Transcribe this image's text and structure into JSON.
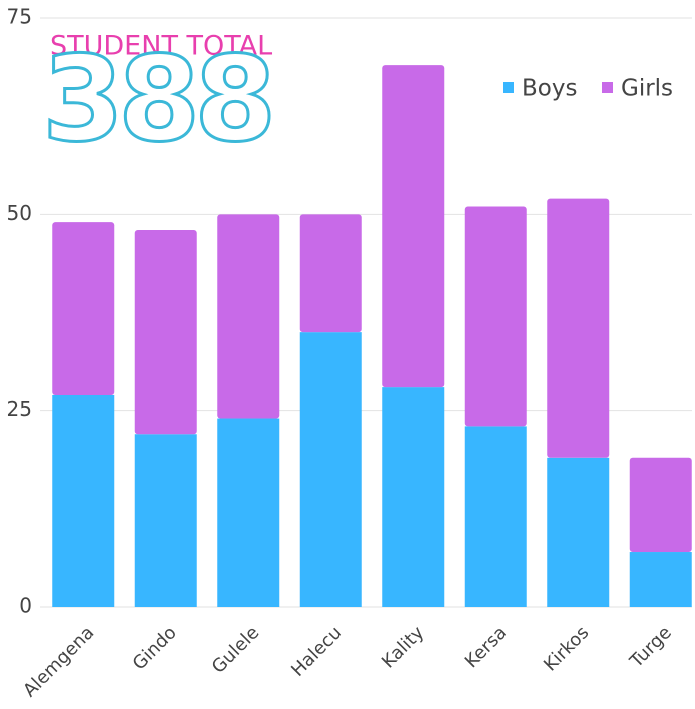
{
  "chart_data": {
    "type": "stacked_bar",
    "title": "STUDENT TOTAL",
    "annotation": "388",
    "categories": [
      "Alemgena",
      "Gindo",
      "Gulele",
      "Halecu",
      "Kality",
      "Kersa",
      "Kirkos",
      "Turge"
    ],
    "series": [
      {
        "name": "Boys",
        "color": "#38b6ff",
        "values": [
          27,
          22,
          24,
          35,
          28,
          23,
          19,
          7
        ]
      },
      {
        "name": "Girls",
        "color": "#c86ae8",
        "values": [
          22,
          26,
          26,
          15,
          41,
          28,
          33,
          12
        ]
      }
    ],
    "ylim": [
      0,
      75
    ],
    "yticks": [
      0,
      25,
      50,
      75
    ],
    "grid": true,
    "legend": "top-right"
  }
}
